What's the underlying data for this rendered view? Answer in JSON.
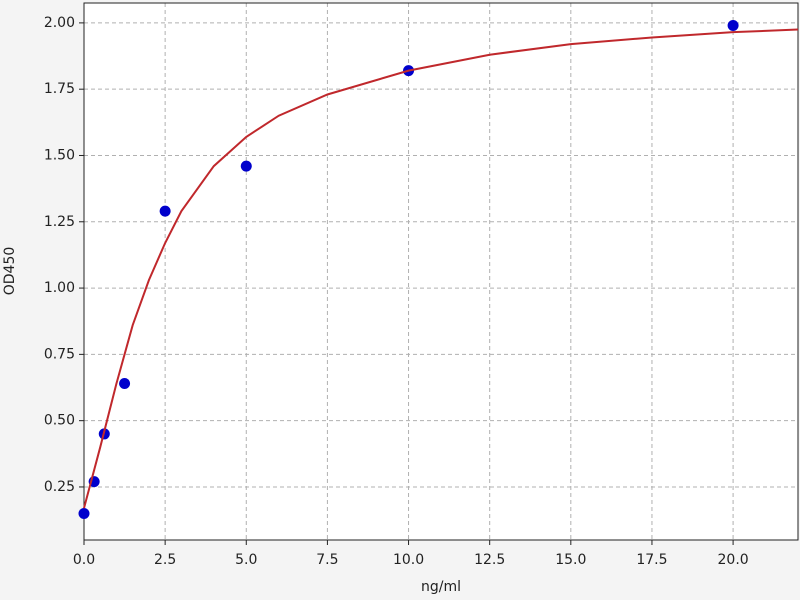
{
  "chart_data": {
    "type": "scatter",
    "xlabel": "ng/ml",
    "ylabel": "OD450",
    "xlim": [
      0,
      22
    ],
    "ylim": [
      0.05,
      2.075
    ],
    "xticks": [
      {
        "value": 0,
        "label": "0.0"
      },
      {
        "value": 2.5,
        "label": "2.5"
      },
      {
        "value": 5,
        "label": "5.0"
      },
      {
        "value": 7.5,
        "label": "7.5"
      },
      {
        "value": 10,
        "label": "10.0"
      },
      {
        "value": 12.5,
        "label": "12.5"
      },
      {
        "value": 15,
        "label": "15.0"
      },
      {
        "value": 17.5,
        "label": "17.5"
      },
      {
        "value": 20,
        "label": "20.0"
      }
    ],
    "yticks": [
      {
        "value": 0.25,
        "label": "0.25"
      },
      {
        "value": 0.5,
        "label": "0.50"
      },
      {
        "value": 0.75,
        "label": "0.75"
      },
      {
        "value": 1,
        "label": "1.00"
      },
      {
        "value": 1.25,
        "label": "1.25"
      },
      {
        "value": 1.5,
        "label": "1.50"
      },
      {
        "value": 1.75,
        "label": "1.75"
      },
      {
        "value": 2,
        "label": "2.00"
      }
    ],
    "grid": true,
    "series": [
      {
        "mode": "markers",
        "color": "#0000cc",
        "x": [
          0,
          0.3125,
          0.625,
          1.25,
          2.5,
          5,
          10,
          20
        ],
        "values": [
          0.15,
          0.27,
          0.45,
          0.64,
          1.29,
          1.46,
          1.82,
          1.99
        ]
      },
      {
        "mode": "line",
        "color": "#c0282c",
        "x": [
          0,
          0.5,
          1,
          1.5,
          2,
          2.5,
          3,
          4,
          5,
          6,
          7.5,
          10,
          12.5,
          15,
          17.5,
          20,
          22
        ],
        "values": [
          0.17,
          0.4,
          0.64,
          0.86,
          1.03,
          1.17,
          1.29,
          1.46,
          1.57,
          1.65,
          1.73,
          1.82,
          1.88,
          1.92,
          1.945,
          1.965,
          1.975
        ]
      }
    ]
  }
}
